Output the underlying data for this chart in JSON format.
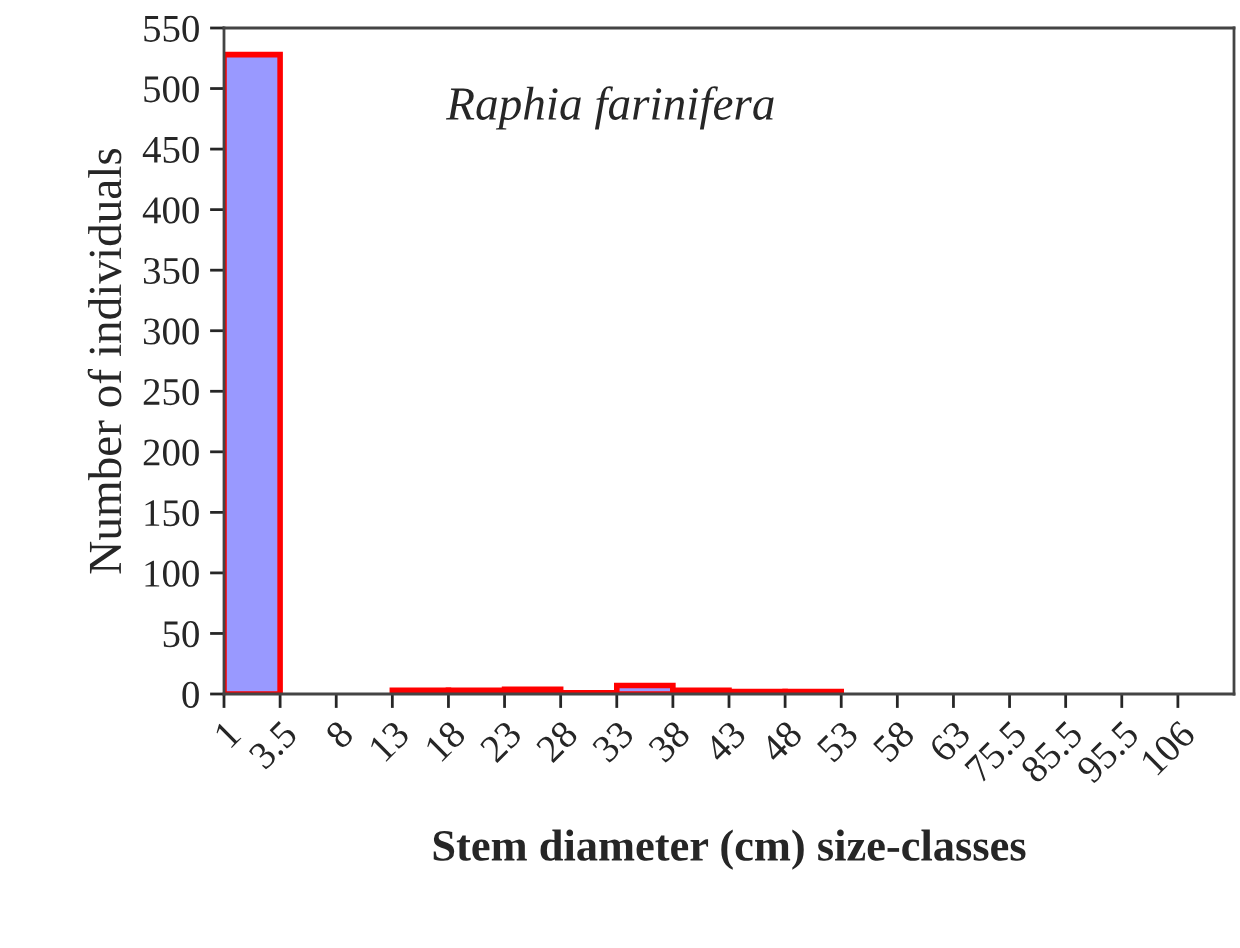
{
  "chart_data": {
    "type": "bar",
    "xlabel": "Stem diameter (cm) size-classes",
    "ylabel": "Number of individuals",
    "annotations": [
      "Raphia farinifera"
    ],
    "categories": [
      "1",
      "3.5",
      "8",
      "13",
      "18",
      "23",
      "28",
      "33",
      "38",
      "43",
      "48",
      "53",
      "58",
      "63",
      "75.5",
      "85.5",
      "95.5",
      "106"
    ],
    "series": [
      {
        "color": "#9999ff",
        "values": [
          528,
          0,
          0,
          3,
          3,
          4,
          1,
          7,
          3,
          2,
          2,
          0,
          0,
          0,
          0,
          0,
          0,
          0
        ]
      }
    ],
    "ylim": [
      0,
      550
    ],
    "yticks": [
      0,
      50,
      100,
      150,
      200,
      250,
      300,
      350,
      400,
      450,
      500,
      550
    ],
    "grid": false,
    "legend": false
  }
}
